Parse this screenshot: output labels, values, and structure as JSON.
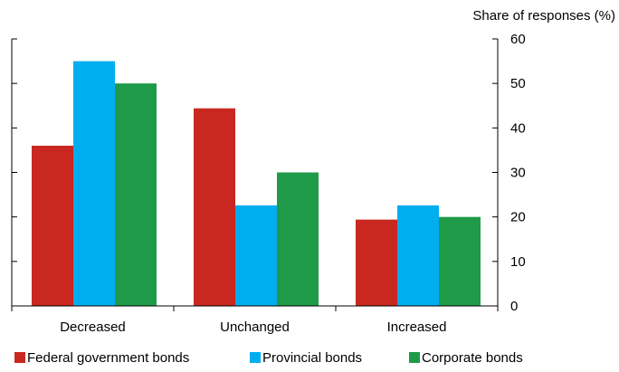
{
  "chart_data": {
    "type": "bar",
    "ylabel": "Share of responses (%)",
    "ylim": [
      0,
      60
    ],
    "yticks": [
      0,
      10,
      20,
      30,
      40,
      50,
      60
    ],
    "y_axis_side": "right",
    "categories": [
      "Decreased",
      "Unchanged",
      "Increased"
    ],
    "series": [
      {
        "name": "Federal government bonds",
        "color": "#c8281f",
        "values": [
          36,
          44.4,
          19.4
        ]
      },
      {
        "name": "Provincial bonds",
        "color": "#00aeef",
        "values": [
          55,
          22.6,
          22.6
        ]
      },
      {
        "name": "Corporate bonds",
        "color": "#1f9a48",
        "values": [
          50,
          30,
          20
        ]
      }
    ],
    "legend_position": "bottom",
    "grid": false
  }
}
